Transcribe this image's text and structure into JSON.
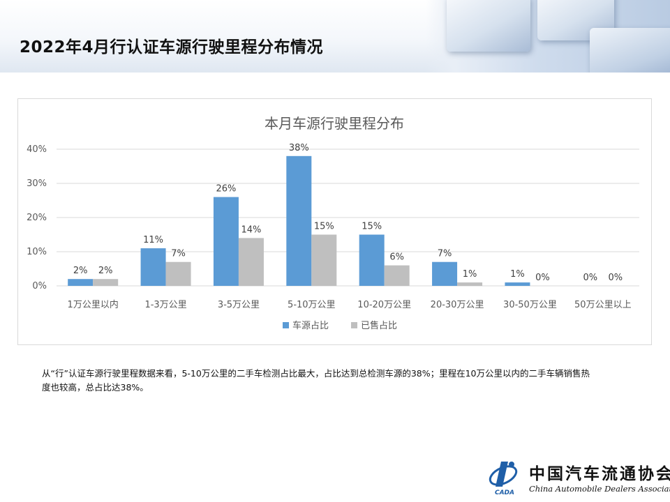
{
  "page": {
    "title": "2022年4月行认证车源行驶里程分布情况",
    "caption": "从“行”认证车源行驶里程数据来看，5-10万公里的二手车检测占比最大，占比达到总检测车源的38%；里程在10万公里以内的二手车辆销售热度也较高，总占比达38%。"
  },
  "logo": {
    "cn": "中国汽车流通协会",
    "en": "China Automobile Dealers Association",
    "mark_text": "CADA"
  },
  "colors": {
    "series1": "#5b9bd5",
    "series2": "#bfbfbf",
    "grid": "#d9d9d9"
  },
  "chart_data": {
    "type": "bar",
    "title": "本月车源行驶里程分布",
    "categories": [
      "1万公里以内",
      "1-3万公里",
      "3-5万公里",
      "5-10万公里",
      "10-20万公里",
      "20-30万公里",
      "30-50万公里",
      "50万公里以上"
    ],
    "series": [
      {
        "name": "车源占比",
        "values": [
          2,
          11,
          26,
          38,
          15,
          7,
          1,
          0
        ],
        "labels": [
          "2%",
          "11%",
          "26%",
          "38%",
          "15%",
          "7%",
          "1%",
          "0%"
        ]
      },
      {
        "name": "已售占比",
        "values": [
          2,
          7,
          14,
          15,
          6,
          1,
          0,
          0
        ],
        "labels": [
          "2%",
          "7%",
          "14%",
          "15%",
          "6%",
          "1%",
          "0%",
          "0%"
        ]
      }
    ],
    "ylim": [
      0,
      40
    ],
    "yticks": [
      "0%",
      "10%",
      "20%",
      "30%",
      "40%"
    ],
    "ytick_values": [
      0,
      10,
      20,
      30,
      40
    ],
    "grid": true,
    "legend": "bottom",
    "xlabel": "",
    "ylabel": ""
  }
}
